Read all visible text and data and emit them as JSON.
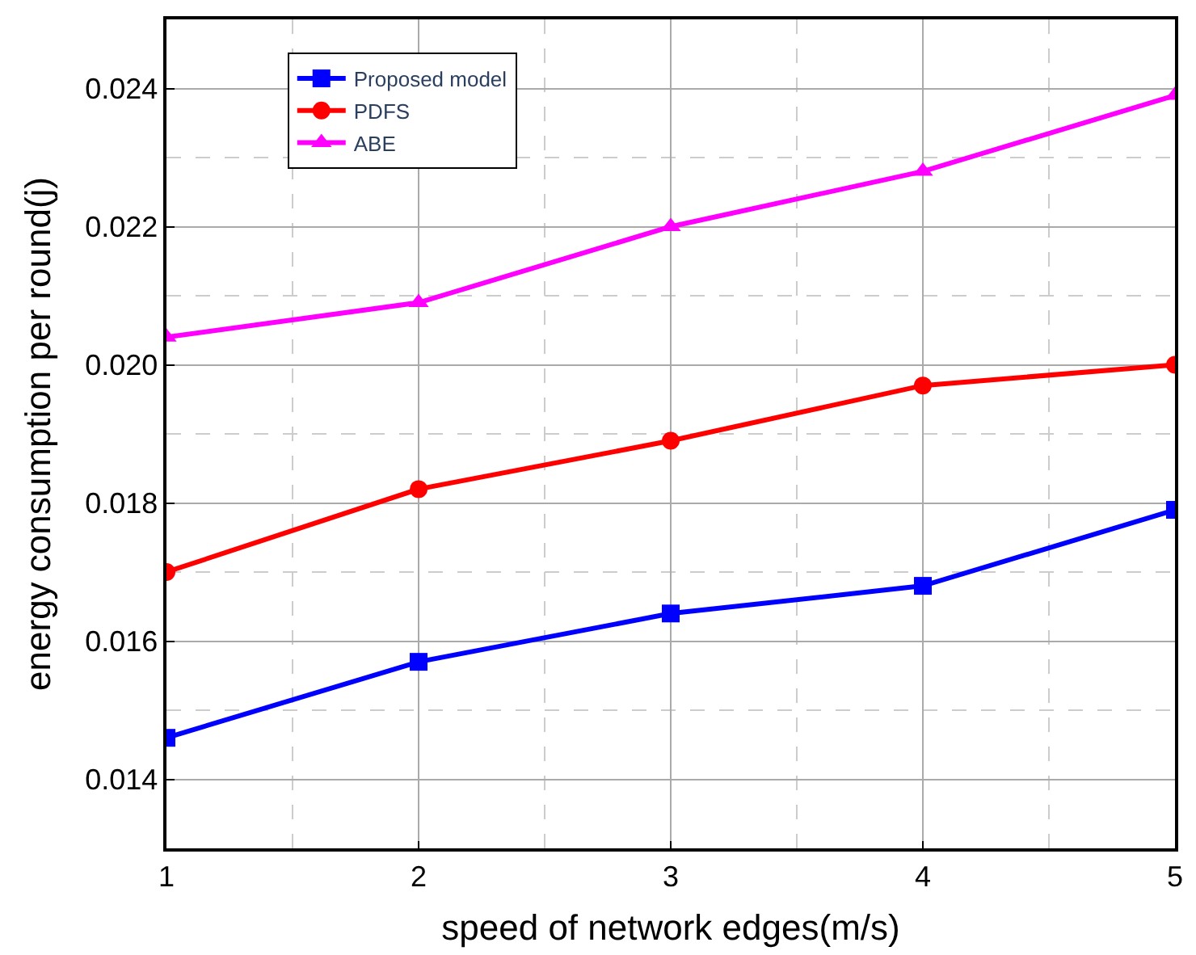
{
  "chart_data": {
    "type": "line",
    "xlabel": "speed of network edges(m/s)",
    "ylabel": "energy consumption per round(j)",
    "x": [
      1,
      2,
      3,
      4,
      5
    ],
    "series": [
      {
        "name": "Proposed model",
        "color": "#0000ff",
        "values": [
          0.0146,
          0.0157,
          0.0164,
          0.0168,
          0.0179
        ],
        "marker": "square"
      },
      {
        "name": "PDFS",
        "color": "#ff0000",
        "values": [
          0.017,
          0.0182,
          0.0189,
          0.0197,
          0.02
        ],
        "marker": "circle"
      },
      {
        "name": "ABE",
        "color": "#ff00ff",
        "values": [
          0.0204,
          0.0209,
          0.022,
          0.0228,
          0.0239
        ],
        "marker": "triangle"
      }
    ],
    "xlim": [
      1,
      5
    ],
    "xticks": [
      1,
      2,
      3,
      4,
      5
    ],
    "ylim": [
      0.013,
      0.025
    ],
    "yticks": [
      {
        "value": 0.014,
        "label": "0.014"
      },
      {
        "value": 0.016,
        "label": "0.016"
      },
      {
        "value": 0.018,
        "label": "0.018"
      },
      {
        "value": 0.02,
        "label": "0.020"
      },
      {
        "value": 0.022,
        "label": "0.022"
      },
      {
        "value": 0.024,
        "label": "0.024"
      }
    ],
    "grid": true,
    "legend": "top left",
    "line_style": "solid"
  }
}
